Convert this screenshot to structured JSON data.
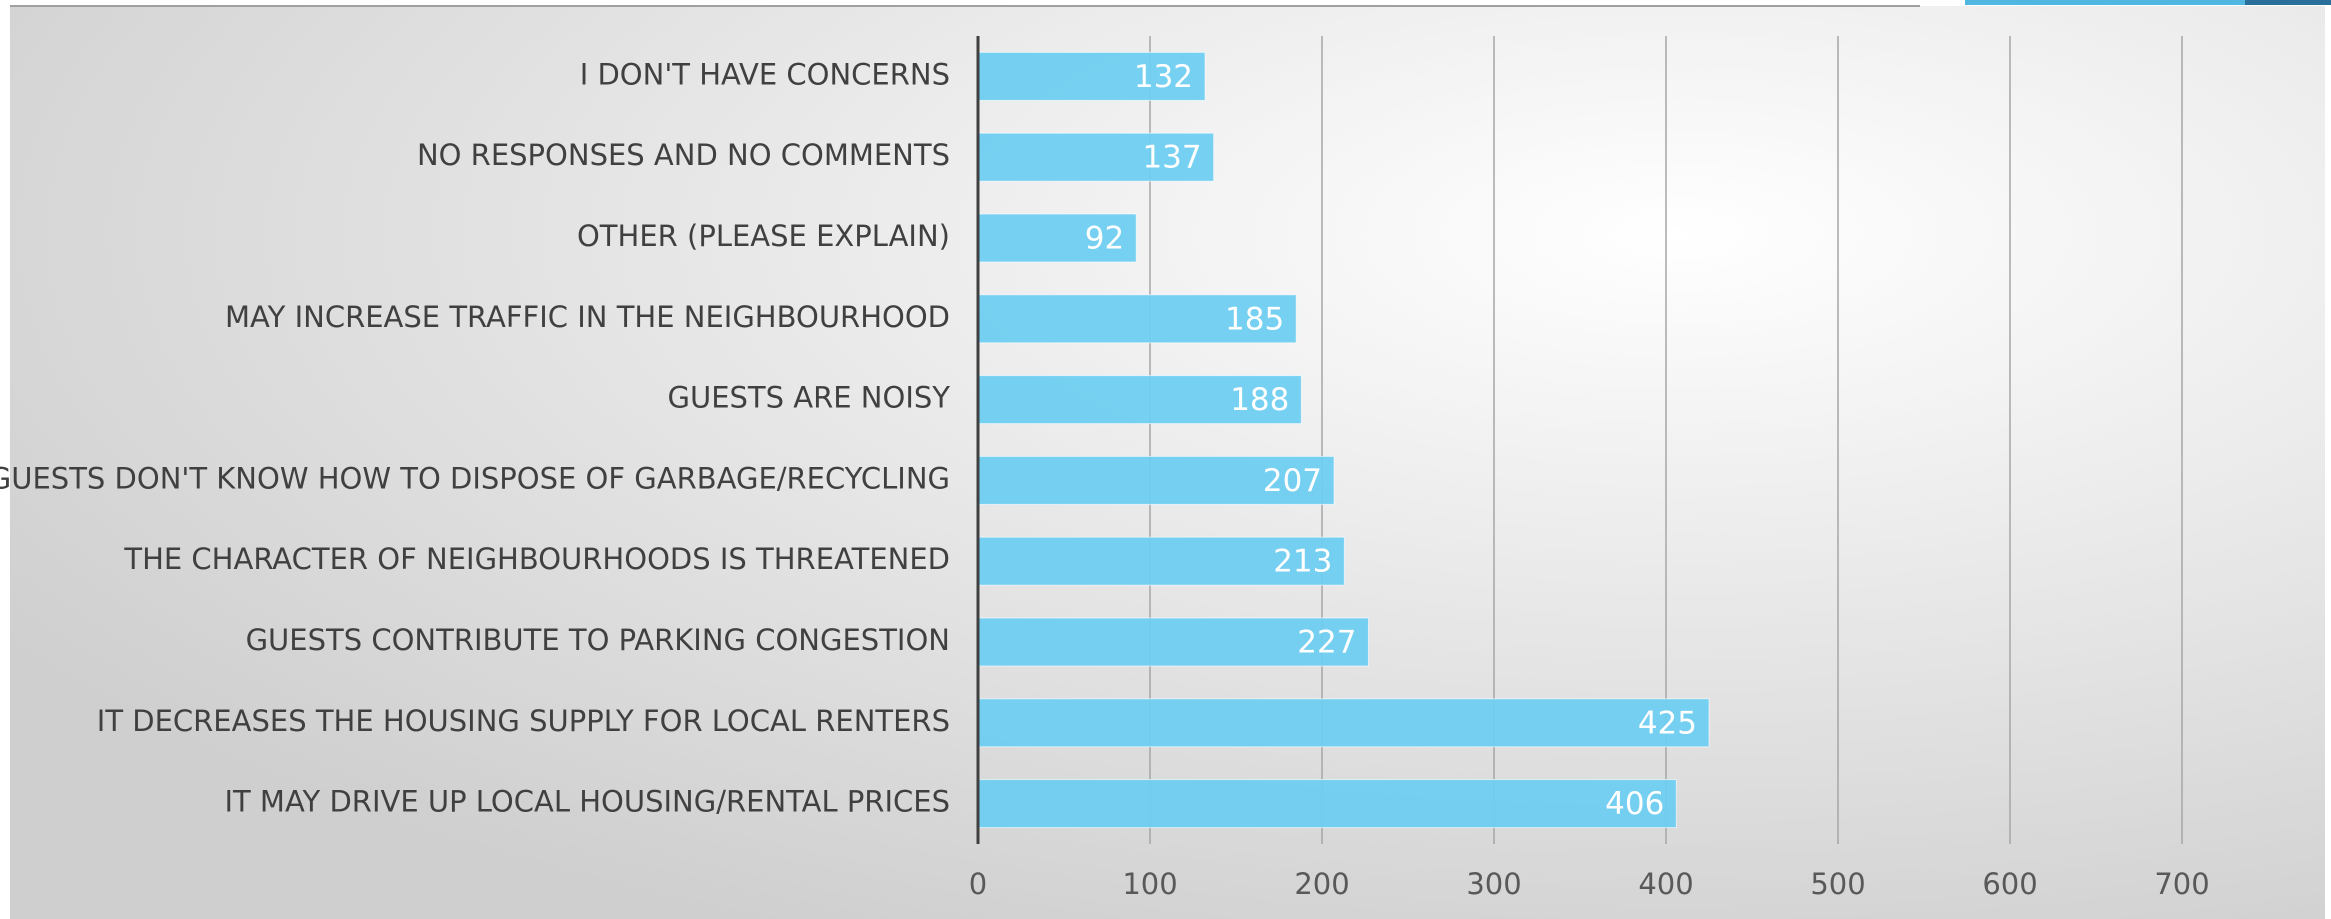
{
  "chart_data": {
    "type": "bar",
    "orientation": "horizontal",
    "categories": [
      "I DON'T HAVE CONCERNS",
      "NO RESPONSES AND NO COMMENTS",
      "OTHER (PLEASE EXPLAIN)",
      "MAY INCREASE TRAFFIC IN THE NEIGHBOURHOOD",
      "GUESTS ARE NOISY",
      "GUESTS DON'T KNOW HOW TO DISPOSE OF GARBAGE/RECYCLING",
      "THE CHARACTER OF NEIGHBOURHOODS IS THREATENED",
      "GUESTS CONTRIBUTE TO PARKING CONGESTION",
      "IT DECREASES THE HOUSING SUPPLY FOR LOCAL RENTERS",
      "IT MAY DRIVE UP LOCAL HOUSING/RENTAL PRICES"
    ],
    "values": [
      132,
      137,
      92,
      185,
      188,
      207,
      213,
      227,
      425,
      406
    ],
    "color": "#6fcdf0",
    "xlim": [
      0,
      750
    ],
    "xticks": [
      0,
      100,
      200,
      300,
      400,
      500,
      600,
      700
    ],
    "grid": true
  }
}
